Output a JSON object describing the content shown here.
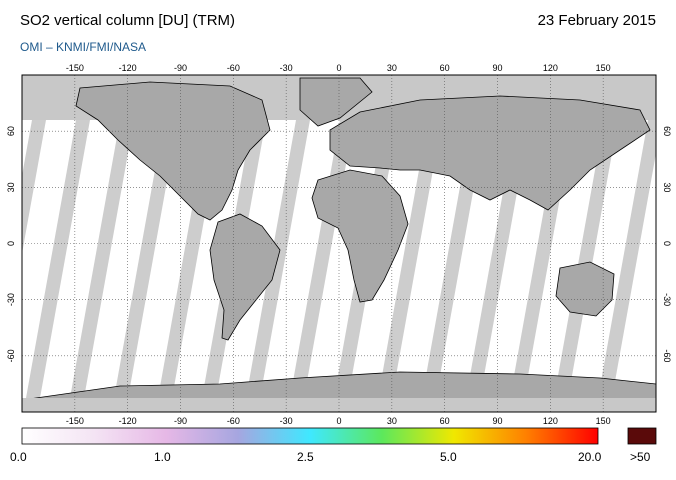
{
  "header": {
    "title": "SO2 vertical column [DU] (TRM)",
    "date": "23 February 2015",
    "credit": "OMI  –  KNMI/FMI/NASA"
  },
  "map": {
    "projection": "equirectangular",
    "lon_ticks": [
      "-150",
      "-120",
      "-90",
      "-60",
      "-30",
      "0",
      "30",
      "60",
      "90",
      "120",
      "150"
    ],
    "lat_ticks": [
      "60",
      "30",
      "0",
      "-30",
      "-60"
    ],
    "lon_range": [
      -180,
      180
    ],
    "lat_range": [
      -90,
      90
    ],
    "colors": {
      "ocean": "#ffffff",
      "no_data": "#c8c8c8",
      "swath_gap": "#a8a8a8",
      "coastline": "#000000",
      "grid": "#555555"
    }
  },
  "colorbar": {
    "labels": [
      "0.0",
      "1.0",
      "2.5",
      "5.0",
      "20.0"
    ],
    "overflow_label": ">50",
    "overflow_color": "#5a0a0a",
    "stops": [
      "#ffffff",
      "#f4e4f4",
      "#e6b8e6",
      "#a6a6e0",
      "#3fe8ff",
      "#5ce85c",
      "#f0e800",
      "#ff8000",
      "#ff0000"
    ]
  }
}
